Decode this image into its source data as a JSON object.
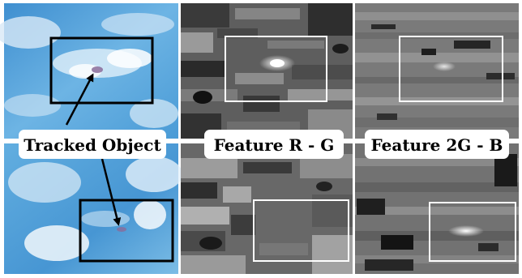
{
  "figure": {
    "labels": {
      "tracked_object": "Tracked Object",
      "feature_rg": "Feature R - G",
      "feature_2gb": "Feature 2G - B"
    },
    "panels": [
      {
        "column": "original",
        "row": "top"
      },
      {
        "column": "feature-r-minus-g",
        "row": "top"
      },
      {
        "column": "feature-2g-minus-b",
        "row": "top"
      },
      {
        "column": "original",
        "row": "bottom"
      },
      {
        "column": "feature-r-minus-g",
        "row": "bottom"
      },
      {
        "column": "feature-2g-minus-b",
        "row": "bottom"
      }
    ],
    "colors": {
      "sky_blue": "#5aa8dc",
      "cloud_white": "#e8f2fa",
      "tracked_box": "#000000",
      "feature_box": "#ffffff",
      "feature_dark": "#2a2a2a",
      "feature_mid": "#6b6b6b",
      "feature_light": "#b5b5b5"
    }
  }
}
